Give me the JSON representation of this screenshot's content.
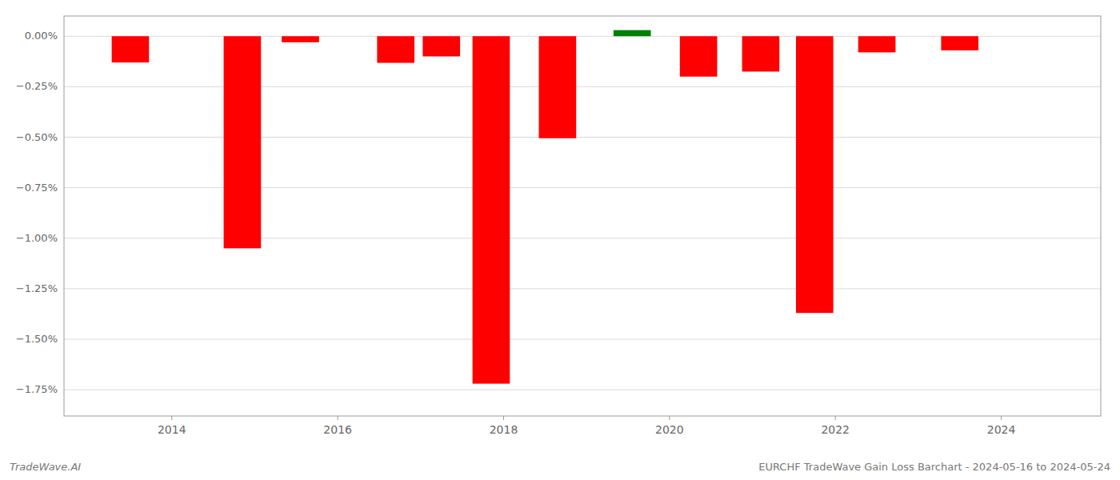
{
  "chart_data": {
    "type": "bar",
    "x": [
      2013.5,
      2014.85,
      2015.55,
      2016.7,
      2017.25,
      2017.85,
      2018.65,
      2019.55,
      2020.35,
      2021.1,
      2021.75,
      2022.5,
      2023.5
    ],
    "values": [
      -0.13,
      -1.05,
      -0.03,
      -0.132,
      -0.1,
      -1.72,
      -0.505,
      0.03,
      -0.2,
      -0.175,
      -1.37,
      -0.08,
      -0.07
    ],
    "colors": [
      "#ff0000",
      "#ff0000",
      "#ff0000",
      "#ff0000",
      "#ff0000",
      "#ff0000",
      "#ff0000",
      "#008000",
      "#ff0000",
      "#ff0000",
      "#ff0000",
      "#ff0000",
      "#ff0000"
    ],
    "xlim": [
      2012.7,
      2025.2
    ],
    "xticks": [
      2014,
      2016,
      2018,
      2020,
      2022,
      2024
    ],
    "ylim": [
      -1.88,
      0.1
    ],
    "yticks": [
      {
        "value": 0.0,
        "label": "0.00%"
      },
      {
        "value": -0.25,
        "label": "−0.25%"
      },
      {
        "value": -0.5,
        "label": "−0.50%"
      },
      {
        "value": -0.75,
        "label": "−0.75%"
      },
      {
        "value": -1.0,
        "label": "−1.00%"
      },
      {
        "value": -1.25,
        "label": "−1.25%"
      },
      {
        "value": -1.5,
        "label": "−1.50%"
      },
      {
        "value": -1.75,
        "label": "−1.75%"
      }
    ],
    "grid": true,
    "annotations": [
      "TradeWave.AI",
      "EURCHF TradeWave Gain Loss Barchart - 2024-05-16 to 2024-05-24"
    ]
  }
}
